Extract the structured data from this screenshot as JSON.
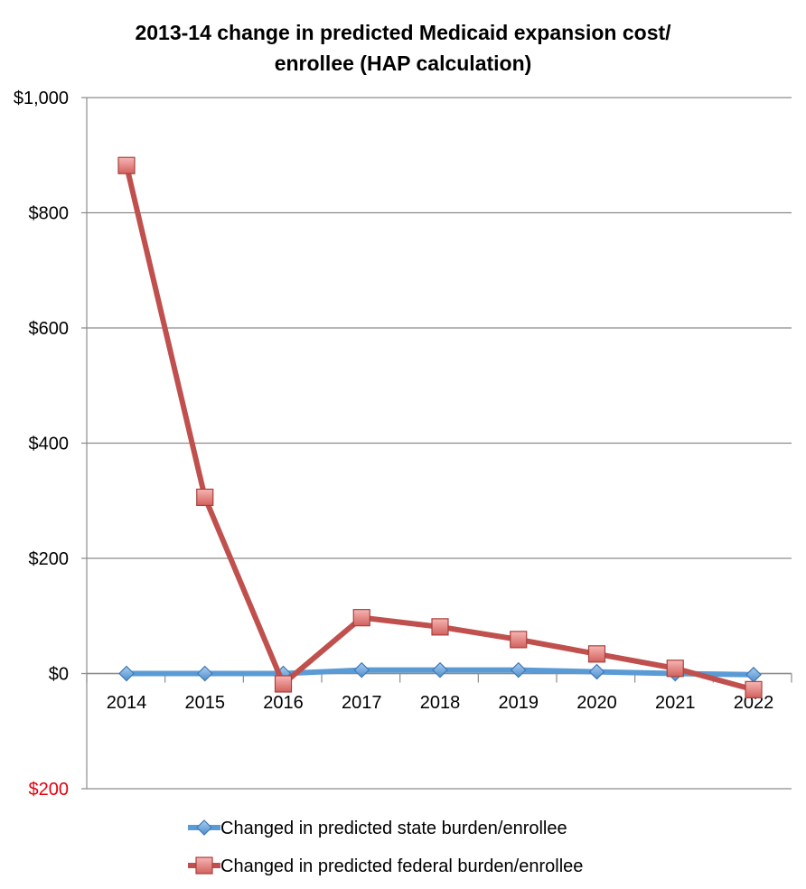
{
  "chart_data": {
    "type": "line",
    "title_lines": [
      "2013-14 change in predicted Medicaid expansion cost/",
      "enrollee (HAP calculation)"
    ],
    "x": [
      "2014",
      "2015",
      "2016",
      "2017",
      "2018",
      "2019",
      "2020",
      "2021",
      "2022"
    ],
    "yticks": [
      1000,
      800,
      600,
      400,
      200,
      0,
      -200
    ],
    "ytick_labels": [
      "$1,000",
      "$800",
      "$600",
      "$400",
      "$200",
      "$0",
      "$200"
    ],
    "ytick_colors": [
      "#000000",
      "#000000",
      "#000000",
      "#000000",
      "#000000",
      "#000000",
      "#e8000b"
    ],
    "ylim": [
      -200,
      1000
    ],
    "grid": true,
    "legend_position": "bottom",
    "series": [
      {
        "name": "Changed in predicted state burden/enrollee",
        "values": [
          0,
          0,
          0,
          6,
          6,
          6,
          3,
          0,
          -2
        ],
        "color": "#5b9bd5",
        "marker": "diamond"
      },
      {
        "name": "Changed in predicted federal burden/enrollee",
        "values": [
          882,
          306,
          -18,
          97,
          81,
          59,
          34,
          9,
          -28
        ],
        "color": "#c0504d",
        "marker": "square"
      }
    ]
  }
}
